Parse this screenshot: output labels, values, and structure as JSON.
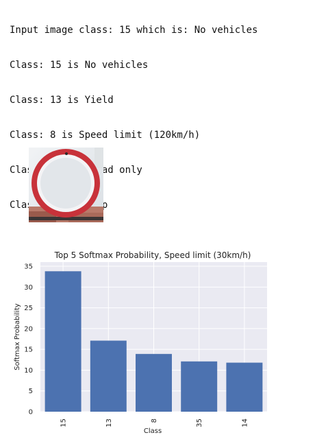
{
  "console": {
    "lines": [
      "Input image class: 15 which is: No vehicles",
      "Class: 15 is No vehicles",
      "Class: 13 is Yield",
      "Class: 8 is Speed limit (120km/h)",
      "Class: 35 is Ahead only",
      "Class: 14 is Stop"
    ]
  },
  "colors": {
    "bar": "#4c72b0",
    "plot_bg": "#eaeaf2",
    "grid": "#ffffff",
    "sign_ring": "#c8323a",
    "sign_face": "#e2e6ea"
  },
  "chart_data": {
    "type": "bar",
    "title": "Top 5 Softmax Probability, Speed limit (30km/h)",
    "xlabel": "Class",
    "ylabel": "Softmax Probability",
    "categories": [
      "15",
      "13",
      "8",
      "35",
      "14"
    ],
    "values": [
      33.8,
      17.1,
      13.9,
      12.1,
      11.8
    ],
    "ylim": [
      0,
      36
    ],
    "yticks": [
      0,
      5,
      10,
      15,
      20,
      25,
      30,
      35
    ],
    "grid": true,
    "xtick_rotation": "vertical"
  }
}
